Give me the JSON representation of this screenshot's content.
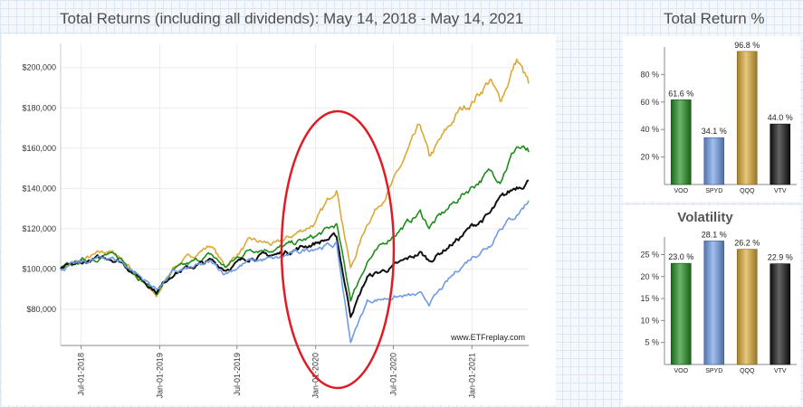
{
  "header": {
    "main_title": "Total Returns (including all dividends): May 14, 2018 - May 14, 2021",
    "side_title": "Total Return %"
  },
  "colors": {
    "VOO": "#1e8c1e",
    "SPYD": "#6f9be6",
    "QQQ": "#dba935",
    "VTV": "#111111",
    "annotation": "#e01b24"
  },
  "chart_data": [
    {
      "type": "line",
      "title": "Total Returns (including all dividends): May 14, 2018 - May 14, 2021",
      "xlabel": "",
      "ylabel": "",
      "x_range": [
        "2018-05-14",
        "2021-05-14"
      ],
      "ylim": [
        62000,
        212000
      ],
      "y_ticks": [
        "$80,000",
        "$100,000",
        "$120,000",
        "$140,000",
        "$160,000",
        "$180,000",
        "$200,000"
      ],
      "x_ticks": [
        {
          "date": "2018-07-01",
          "label": "Jul-01-2018"
        },
        {
          "date": "2019-01-01",
          "label": "Jan-01-2019"
        },
        {
          "date": "2019-07-01",
          "label": "Jul-01-2019"
        },
        {
          "date": "2020-01-01",
          "label": "Jan-01-2020"
        },
        {
          "date": "2020-07-01",
          "label": "Jul-01-2020"
        },
        {
          "date": "2021-01-01",
          "label": "Jan-01-2021"
        }
      ],
      "watermark": "www.ETFreplay.com",
      "grid": true,
      "series": [
        {
          "key": "QQQ",
          "x": [
            "2018-05-14",
            "2018-07-01",
            "2018-09-01",
            "2018-10-01",
            "2018-12-24",
            "2019-02-01",
            "2019-05-01",
            "2019-06-03",
            "2019-08-01",
            "2019-10-01",
            "2020-01-01",
            "2020-02-19",
            "2020-03-23",
            "2020-05-01",
            "2020-07-01",
            "2020-09-02",
            "2020-09-23",
            "2020-12-01",
            "2021-01-01",
            "2021-02-12",
            "2021-03-08",
            "2021-04-16",
            "2021-05-14"
          ],
          "values": [
            100000,
            104000,
            109000,
            106000,
            86000,
            101000,
            112000,
            101000,
            114000,
            112000,
            123000,
            141000,
            100000,
            123000,
            143000,
            171000,
            155000,
            178000,
            183000,
            194000,
            183000,
            204000,
            192000
          ]
        },
        {
          "key": "VOO",
          "x": [
            "2018-05-14",
            "2018-07-01",
            "2018-09-01",
            "2018-10-01",
            "2018-12-24",
            "2019-02-01",
            "2019-05-01",
            "2019-06-03",
            "2019-08-01",
            "2019-10-01",
            "2020-01-01",
            "2020-02-19",
            "2020-03-23",
            "2020-05-01",
            "2020-07-01",
            "2020-09-02",
            "2020-09-23",
            "2020-12-01",
            "2021-01-01",
            "2021-02-12",
            "2021-03-08",
            "2021-04-16",
            "2021-05-14"
          ],
          "values": [
            100000,
            104000,
            107000,
            105000,
            88000,
            99000,
            107000,
            101000,
            110000,
            110000,
            116000,
            122000,
            85000,
            104000,
            117000,
            128000,
            121000,
            135000,
            141000,
            148000,
            145000,
            161000,
            158000
          ]
        },
        {
          "key": "VTV",
          "x": [
            "2018-05-14",
            "2018-07-01",
            "2018-09-01",
            "2018-10-01",
            "2018-12-24",
            "2019-02-01",
            "2019-05-01",
            "2019-06-03",
            "2019-08-01",
            "2019-10-01",
            "2020-01-01",
            "2020-02-19",
            "2020-03-23",
            "2020-05-01",
            "2020-07-01",
            "2020-09-02",
            "2020-09-23",
            "2020-12-01",
            "2021-01-01",
            "2021-02-12",
            "2021-03-08",
            "2021-04-16",
            "2021-05-14"
          ],
          "values": [
            100000,
            103000,
            106000,
            104000,
            89000,
            98000,
            104000,
            100000,
            106000,
            107000,
            113000,
            116000,
            77000,
            96000,
            101000,
            108000,
            104000,
            115000,
            121000,
            127000,
            134000,
            141000,
            144000
          ]
        },
        {
          "key": "SPYD",
          "x": [
            "2018-05-14",
            "2018-07-01",
            "2018-09-01",
            "2018-10-01",
            "2018-12-24",
            "2019-02-01",
            "2019-05-01",
            "2019-06-03",
            "2019-08-01",
            "2019-10-01",
            "2020-01-01",
            "2020-02-19",
            "2020-03-23",
            "2020-05-01",
            "2020-07-01",
            "2020-09-02",
            "2020-09-23",
            "2020-12-01",
            "2021-01-01",
            "2021-02-12",
            "2021-03-08",
            "2021-04-16",
            "2021-05-14"
          ],
          "values": [
            100000,
            103000,
            106000,
            104000,
            90000,
            98000,
            103000,
            98000,
            104000,
            105000,
            111000,
            112000,
            64000,
            84000,
            86000,
            87000,
            83000,
            100000,
            106000,
            112000,
            121000,
            127000,
            134000
          ]
        }
      ]
    },
    {
      "type": "bar",
      "title": "",
      "categories": [
        "VOO",
        "SPYD",
        "QQQ",
        "VTV"
      ],
      "values": [
        61.6,
        34.1,
        96.8,
        44.0
      ],
      "value_labels": [
        "61.6 %",
        "34.1 %",
        "96.8 %",
        "44.0 %"
      ],
      "y_ticks": [
        "20 %",
        "40 %",
        "60 %",
        "80 %"
      ],
      "ylim": [
        0,
        100
      ]
    },
    {
      "type": "bar",
      "title": "Volatility",
      "categories": [
        "VOO",
        "SPYD",
        "QQQ",
        "VTV"
      ],
      "values": [
        23.0,
        28.1,
        26.2,
        22.9
      ],
      "value_labels": [
        "23.0 %",
        "28.1 %",
        "26.2 %",
        "22.9 %"
      ],
      "y_ticks": [
        "5 %",
        "10 %",
        "15 %",
        "20 %",
        "25 %"
      ],
      "ylim": [
        0,
        29
      ]
    }
  ]
}
